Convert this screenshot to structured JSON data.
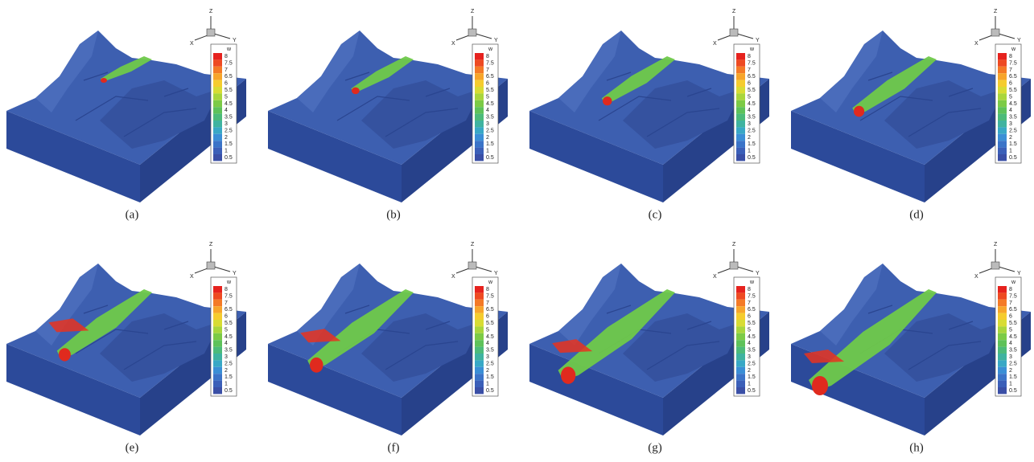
{
  "panels": [
    {
      "caption": "(a)"
    },
    {
      "caption": "(b)"
    },
    {
      "caption": "(c)"
    },
    {
      "caption": "(d)"
    },
    {
      "caption": "(e)"
    },
    {
      "caption": "(f)"
    },
    {
      "caption": "(g)"
    },
    {
      "caption": "(h)"
    }
  ],
  "axis_labels": {
    "x": "X",
    "y": "Y",
    "z": "Z"
  },
  "legend": {
    "title": "w",
    "labels": [
      "8",
      "7.5",
      "7",
      "6.5",
      "6",
      "5.5",
      "5",
      "4.5",
      "4",
      "3.5",
      "3",
      "2.5",
      "2",
      "1.5",
      "1",
      "0.5"
    ],
    "colors": [
      "#e6221e",
      "#ee4a22",
      "#f47a26",
      "#f7a52b",
      "#f5cc2e",
      "#d8dc34",
      "#a9d63c",
      "#7ccb46",
      "#5ec25a",
      "#4cbb7a",
      "#3fb3a0",
      "#38a8c6",
      "#3a8fd6",
      "#3b74c8",
      "#3b5fb8",
      "#3a4fa6"
    ]
  }
}
